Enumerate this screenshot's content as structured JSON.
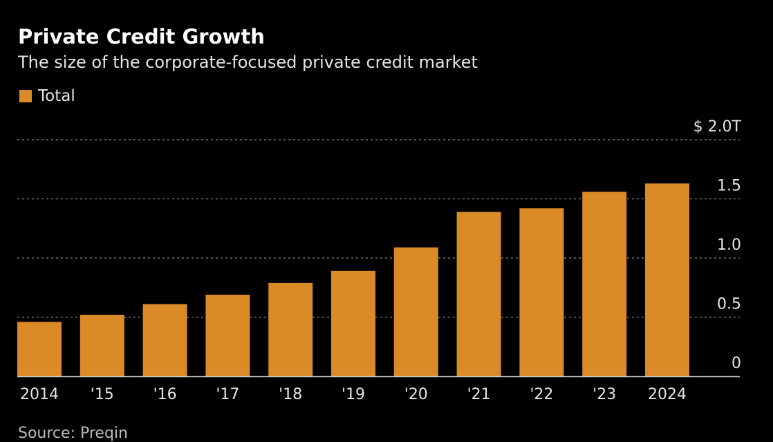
{
  "header": {
    "title": "Private Credit Growth",
    "subtitle": "The size of the corporate-focused private credit market"
  },
  "legend": {
    "label": "Total"
  },
  "source": "Source: Preqin",
  "colors": {
    "bar": "#da8a26",
    "background": "#000000",
    "grid": "#8a8a8a",
    "axis": "#cfcfcf"
  },
  "chart_data": {
    "type": "bar",
    "categories": [
      "2014",
      "'15",
      "'16",
      "'17",
      "'18",
      "'19",
      "'20",
      "'21",
      "'22",
      "'23",
      "2024"
    ],
    "series": [
      {
        "name": "Total",
        "values": [
          0.46,
          0.52,
          0.61,
          0.69,
          0.79,
          0.89,
          1.09,
          1.39,
          1.42,
          1.56,
          1.63
        ]
      }
    ],
    "y_ticks": [
      {
        "value": 0,
        "label": "0"
      },
      {
        "value": 0.5,
        "label": "0.5"
      },
      {
        "value": 1.0,
        "label": "1.0"
      },
      {
        "value": 1.5,
        "label": "1.5"
      },
      {
        "value": 2.0,
        "label": "$ 2.0T"
      }
    ],
    "ylim": [
      0,
      2.0
    ],
    "y_axis_position": "right",
    "grid": true,
    "grid_style": "dotted",
    "legend_position": "top-left"
  }
}
